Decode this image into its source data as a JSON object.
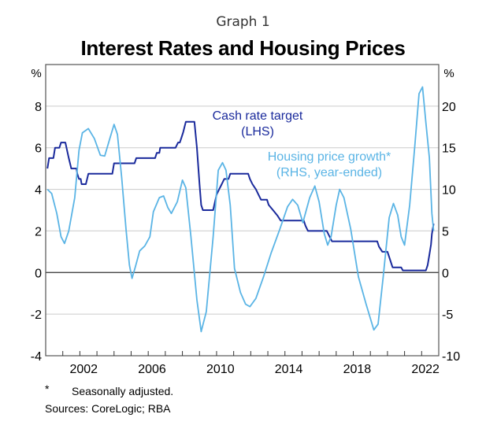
{
  "header": {
    "graph_number": "Graph 1",
    "title": "Interest Rates and Housing Prices"
  },
  "chart_data": {
    "type": "line",
    "title": "Interest Rates and Housing Prices",
    "subtitle": "Graph 1",
    "xlabel": "",
    "x_range": [
      2000,
      2023
    ],
    "x_tick_labels": [
      "2002",
      "2006",
      "2010",
      "2014",
      "2018",
      "2022"
    ],
    "x_tick_label_years": [
      2002,
      2006,
      2010,
      2014,
      2018,
      2022
    ],
    "x_minor_ticks": "yearly",
    "left_axis": {
      "unit_label": "%",
      "range": [
        -4,
        10
      ],
      "ticks": [
        -4,
        -2,
        0,
        2,
        4,
        6,
        8
      ],
      "tick_labels": [
        "-4",
        "-2",
        "0",
        "2",
        "4",
        "6",
        "8"
      ]
    },
    "right_axis": {
      "unit_label": "%",
      "range": [
        -10,
        25
      ],
      "ticks": [
        -10,
        -5,
        0,
        5,
        10,
        15,
        20
      ],
      "tick_labels": [
        "-10",
        "-5",
        "0",
        "5",
        "10",
        "15",
        "20"
      ]
    },
    "grid": true,
    "zero_line": true,
    "series": [
      {
        "name": "Cash rate target",
        "axis_note": "(LHS)",
        "axis": "left",
        "color": "#1a2a9c",
        "points": [
          [
            2000.1,
            5.0
          ],
          [
            2000.2,
            5.5
          ],
          [
            2000.45,
            5.5
          ],
          [
            2000.55,
            6.0
          ],
          [
            2000.8,
            6.0
          ],
          [
            2000.9,
            6.25
          ],
          [
            2001.15,
            6.25
          ],
          [
            2001.35,
            5.5
          ],
          [
            2001.5,
            5.0
          ],
          [
            2001.8,
            5.0
          ],
          [
            2001.85,
            4.75
          ],
          [
            2001.95,
            4.5
          ],
          [
            2002.05,
            4.5
          ],
          [
            2002.1,
            4.25
          ],
          [
            2002.35,
            4.25
          ],
          [
            2002.5,
            4.75
          ],
          [
            2003.9,
            4.75
          ],
          [
            2004.0,
            5.25
          ],
          [
            2005.2,
            5.25
          ],
          [
            2005.3,
            5.5
          ],
          [
            2006.4,
            5.5
          ],
          [
            2006.5,
            5.75
          ],
          [
            2006.65,
            5.75
          ],
          [
            2006.7,
            6.0
          ],
          [
            2007.6,
            6.0
          ],
          [
            2007.75,
            6.25
          ],
          [
            2007.85,
            6.25
          ],
          [
            2007.95,
            6.5
          ],
          [
            2008.05,
            6.75
          ],
          [
            2008.2,
            7.25
          ],
          [
            2008.7,
            7.25
          ],
          [
            2008.85,
            6.0
          ],
          [
            2009.0,
            4.25
          ],
          [
            2009.1,
            3.25
          ],
          [
            2009.2,
            3.0
          ],
          [
            2009.8,
            3.0
          ],
          [
            2010.0,
            3.75
          ],
          [
            2010.15,
            4.0
          ],
          [
            2010.3,
            4.25
          ],
          [
            2010.45,
            4.5
          ],
          [
            2010.7,
            4.5
          ],
          [
            2010.8,
            4.75
          ],
          [
            2011.85,
            4.75
          ],
          [
            2011.95,
            4.5
          ],
          [
            2012.1,
            4.25
          ],
          [
            2012.3,
            4.0
          ],
          [
            2012.45,
            3.75
          ],
          [
            2012.6,
            3.5
          ],
          [
            2012.95,
            3.5
          ],
          [
            2013.05,
            3.25
          ],
          [
            2013.3,
            3.0
          ],
          [
            2013.55,
            2.75
          ],
          [
            2013.75,
            2.5
          ],
          [
            2015.1,
            2.5
          ],
          [
            2015.2,
            2.25
          ],
          [
            2015.35,
            2.0
          ],
          [
            2016.45,
            2.0
          ],
          [
            2016.6,
            1.75
          ],
          [
            2016.75,
            1.5
          ],
          [
            2019.4,
            1.5
          ],
          [
            2019.5,
            1.25
          ],
          [
            2019.7,
            1.0
          ],
          [
            2020.0,
            1.0
          ],
          [
            2020.1,
            0.75
          ],
          [
            2020.3,
            0.25
          ],
          [
            2020.8,
            0.25
          ],
          [
            2020.9,
            0.1
          ],
          [
            2022.25,
            0.1
          ],
          [
            2022.35,
            0.35
          ],
          [
            2022.45,
            0.85
          ],
          [
            2022.55,
            1.35
          ],
          [
            2022.6,
            1.85
          ],
          [
            2022.7,
            2.35
          ]
        ]
      },
      {
        "name": "Housing price growth*",
        "axis_note": "(RHS, year-ended)",
        "axis": "right",
        "color": "#5ab4e5",
        "points": [
          [
            2000.1,
            10.0
          ],
          [
            2000.35,
            9.5
          ],
          [
            2000.65,
            7.1
          ],
          [
            2000.9,
            4.3
          ],
          [
            2001.1,
            3.5
          ],
          [
            2001.35,
            5.0
          ],
          [
            2001.7,
            9.0
          ],
          [
            2001.95,
            14.7
          ],
          [
            2002.15,
            16.8
          ],
          [
            2002.5,
            17.3
          ],
          [
            2002.85,
            16.1
          ],
          [
            2003.2,
            14.1
          ],
          [
            2003.45,
            14.0
          ],
          [
            2003.75,
            16.1
          ],
          [
            2004.0,
            17.8
          ],
          [
            2004.2,
            16.6
          ],
          [
            2004.45,
            11.4
          ],
          [
            2004.7,
            5.2
          ],
          [
            2004.9,
            0.9
          ],
          [
            2005.05,
            -0.7
          ],
          [
            2005.25,
            0.7
          ],
          [
            2005.5,
            2.6
          ],
          [
            2005.8,
            3.2
          ],
          [
            2006.1,
            4.3
          ],
          [
            2006.3,
            7.3
          ],
          [
            2006.65,
            9.0
          ],
          [
            2006.9,
            9.2
          ],
          [
            2007.15,
            7.8
          ],
          [
            2007.35,
            7.1
          ],
          [
            2007.7,
            8.5
          ],
          [
            2008.0,
            11.1
          ],
          [
            2008.2,
            10.2
          ],
          [
            2008.5,
            4.3
          ],
          [
            2008.85,
            -3.3
          ],
          [
            2009.1,
            -7.1
          ],
          [
            2009.4,
            -4.7
          ],
          [
            2009.8,
            4.3
          ],
          [
            2010.1,
            12.3
          ],
          [
            2010.35,
            13.2
          ],
          [
            2010.55,
            12.3
          ],
          [
            2010.8,
            8.1
          ],
          [
            2011.05,
            0.5
          ],
          [
            2011.4,
            -2.4
          ],
          [
            2011.7,
            -3.8
          ],
          [
            2011.95,
            -4.1
          ],
          [
            2012.3,
            -3.1
          ],
          [
            2012.75,
            -0.5
          ],
          [
            2013.2,
            2.4
          ],
          [
            2013.7,
            5.2
          ],
          [
            2014.15,
            7.9
          ],
          [
            2014.45,
            8.8
          ],
          [
            2014.75,
            8.1
          ],
          [
            2015.05,
            6.0
          ],
          [
            2015.45,
            9.0
          ],
          [
            2015.75,
            10.4
          ],
          [
            2016.0,
            8.5
          ],
          [
            2016.3,
            4.7
          ],
          [
            2016.5,
            3.3
          ],
          [
            2016.7,
            4.3
          ],
          [
            2017.0,
            8.1
          ],
          [
            2017.2,
            10.0
          ],
          [
            2017.45,
            9.0
          ],
          [
            2017.85,
            5.2
          ],
          [
            2018.3,
            -0.5
          ],
          [
            2018.75,
            -3.8
          ],
          [
            2019.2,
            -6.9
          ],
          [
            2019.45,
            -6.2
          ],
          [
            2019.75,
            -0.5
          ],
          [
            2020.1,
            6.6
          ],
          [
            2020.35,
            8.3
          ],
          [
            2020.6,
            6.9
          ],
          [
            2020.8,
            4.3
          ],
          [
            2021.0,
            3.3
          ],
          [
            2021.3,
            8.1
          ],
          [
            2021.6,
            15.2
          ],
          [
            2021.85,
            21.5
          ],
          [
            2022.05,
            22.3
          ],
          [
            2022.25,
            18.0
          ],
          [
            2022.45,
            13.8
          ],
          [
            2022.6,
            7.1
          ],
          [
            2022.7,
            5.0
          ]
        ]
      }
    ],
    "annotations": [
      {
        "text": "Cash rate target",
        "series": "Cash rate target"
      },
      {
        "text": "(LHS)",
        "series": "Cash rate target"
      },
      {
        "text": "Housing price growth*",
        "series": "Housing price growth*"
      },
      {
        "text": "(RHS, year-ended)",
        "series": "Housing price growth*"
      }
    ]
  },
  "footnotes": {
    "asterisk": "*",
    "asterisk_text": "Seasonally adjusted.",
    "sources": "Sources: CoreLogic; RBA"
  }
}
